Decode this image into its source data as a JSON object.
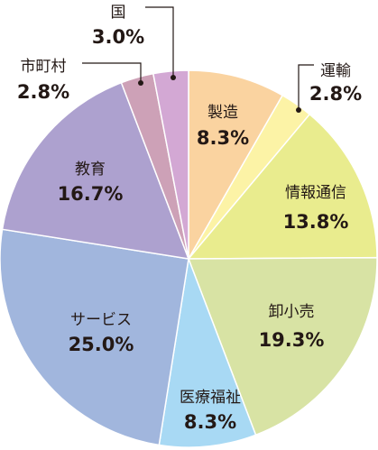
{
  "chart_data": {
    "type": "pie",
    "start_angle_deg": 0,
    "direction": "clockwise",
    "slices": [
      {
        "label": "製造",
        "value": 8.3,
        "value_text": "8.3%",
        "color": "#FAD3A0"
      },
      {
        "label": "運輸",
        "value": 2.8,
        "value_text": "2.8%",
        "color": "#FCF3A6"
      },
      {
        "label": "情報通信",
        "value": 13.8,
        "value_text": "13.8%",
        "color": "#E9EC8E"
      },
      {
        "label": "卸小売",
        "value": 19.3,
        "value_text": "19.3%",
        "color": "#D8E3A4"
      },
      {
        "label": "医療福祉",
        "value": 8.3,
        "value_text": "8.3%",
        "color": "#A8D9F4"
      },
      {
        "label": "サービス",
        "value": 25.0,
        "value_text": "25.0%",
        "color": "#A1B6DD"
      },
      {
        "label": "教育",
        "value": 16.7,
        "value_text": "16.7%",
        "color": "#ADA1CF"
      },
      {
        "label": "市町村",
        "value": 2.8,
        "value_text": "2.8%",
        "color": "#CDA1B7"
      },
      {
        "label": "国",
        "value": 3.0,
        "value_text": "3.0%",
        "color": "#D3A8D4"
      }
    ]
  }
}
